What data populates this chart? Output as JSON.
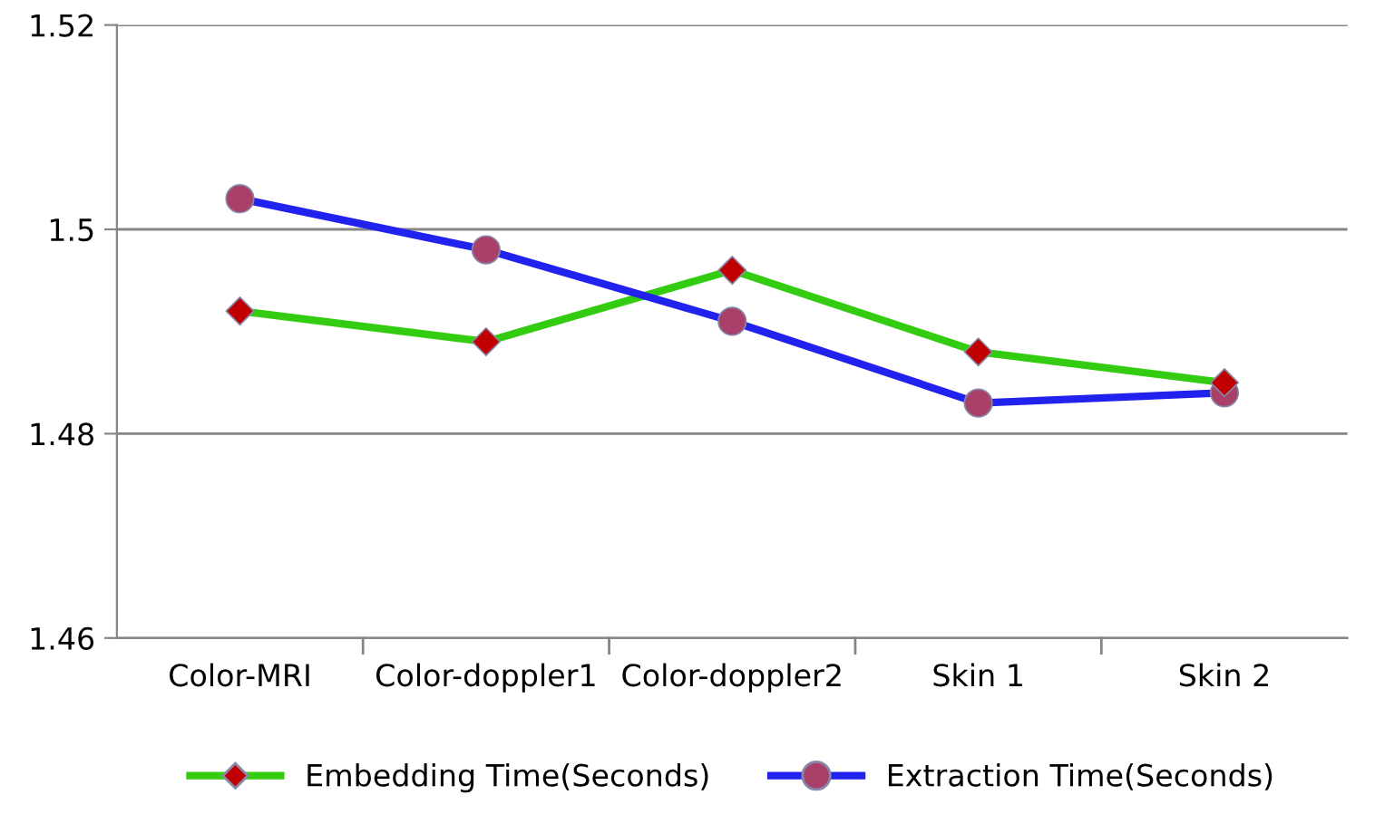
{
  "chart_data": {
    "type": "line",
    "categories": [
      "Color-MRI",
      "Color-doppler1",
      "Color-doppler2",
      "Skin 1",
      "Skin 2"
    ],
    "series": [
      {
        "name": "Embedding Time(Seconds)",
        "color": "#33cc11",
        "colors": [
          "#c00000",
          "#c00000",
          "#c00000",
          "#c00000",
          "#c00000"
        ],
        "marker": "diamond",
        "values": [
          1.492,
          1.489,
          1.496,
          1.488,
          1.485
        ]
      },
      {
        "name": "Extraction Time(Seconds)",
        "color": "#2222ee",
        "colors": [
          "#a8406a",
          "#a8406a",
          "#a8406a",
          "#a8406a",
          "#a8406a"
        ],
        "marker": "circle",
        "values": [
          1.503,
          1.498,
          1.491,
          1.483,
          1.484
        ]
      }
    ],
    "ylim": [
      1.46,
      1.52
    ],
    "yticks": [
      1.46,
      1.48,
      1.5,
      1.52
    ],
    "grid": "y",
    "legend": "bottom",
    "line_style": "solid"
  }
}
